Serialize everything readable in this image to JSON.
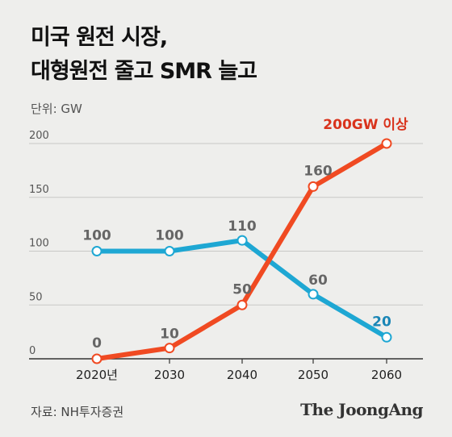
{
  "title_lines": [
    "미국 원전 시장,",
    "대형원전 줄고 SMR 늘고"
  ],
  "unit_label": "단위: GW",
  "source": "자료: NH투자증권",
  "brand": "The JoongAng",
  "chart_data": {
    "type": "line",
    "x": [
      "2020년",
      "2030",
      "2040",
      "2050",
      "2060"
    ],
    "ylim": [
      0,
      200
    ],
    "yticks": [
      0,
      50,
      100,
      150,
      200
    ],
    "grid": true,
    "series": [
      {
        "values": [
          100,
          100,
          110,
          60,
          20
        ],
        "labels": [
          "100",
          "100",
          "110",
          "60",
          "20"
        ],
        "color": "#1ea7d3",
        "label_color": "#666666",
        "last_label_color": "#1a86b6"
      },
      {
        "values": [
          0,
          10,
          50,
          160,
          200
        ],
        "labels": [
          "0",
          "10",
          "50",
          "160",
          "200GW 이상"
        ],
        "color": "#f04a22",
        "label_color": "#666666",
        "last_label_color": "#d9331c"
      }
    ]
  }
}
